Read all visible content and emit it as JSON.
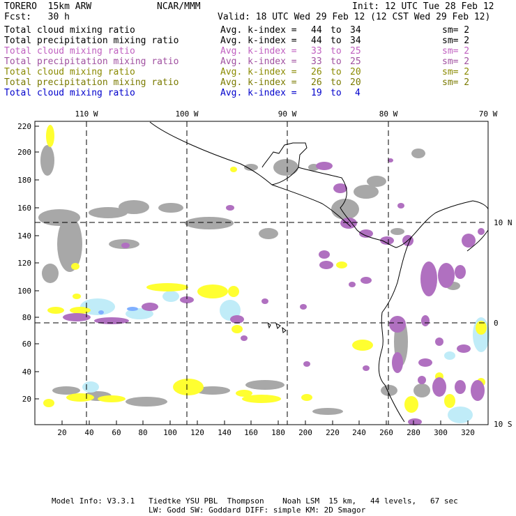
{
  "header": {
    "model": "TORERO  15km ARW",
    "center": "NCAR/MMM",
    "init": "Init: 12 UTC Tue 28 Feb 12",
    "fcst": "Fcst:   30 h",
    "valid": "Valid: 18 UTC Wed 29 Feb 12 (12 CST Wed 29 Feb 12)"
  },
  "legend": {
    "rows": [
      {
        "field": "Total cloud mixing ratio",
        "index_label": "Avg. k-index =",
        "from": "44",
        "to_word": "to",
        "to": "34",
        "sm": "sm= 2",
        "color": "#000000"
      },
      {
        "field": "Total precipitation mixing ratio",
        "index_label": "Avg. k-index =",
        "from": "44",
        "to_word": "to",
        "to": "34",
        "sm": "sm= 2",
        "color": "#000000"
      },
      {
        "field": "Total cloud mixing ratio",
        "index_label": "Avg. k-index =",
        "from": "33",
        "to_word": "to",
        "to": "25",
        "sm": "sm= 2",
        "color": "#c060c0"
      },
      {
        "field": "Total precipitation mixing ratio",
        "index_label": "Avg. k-index =",
        "from": "33",
        "to_word": "to",
        "to": "25",
        "sm": "sm= 2",
        "color": "#a050a0"
      },
      {
        "field": "Total cloud mixing ratio",
        "index_label": "Avg. k-index =",
        "from": "26",
        "to_word": "to",
        "to": "20",
        "sm": "sm= 2",
        "color": "#8a8a00"
      },
      {
        "field": "Total precipitation mixing ratio",
        "index_label": "Avg. k-index =",
        "from": "26",
        "to_word": "to",
        "to": "20",
        "sm": "sm= 2",
        "color": "#7a7a00"
      },
      {
        "field": "Total cloud mixing ratio",
        "index_label": "Avg. k-index =",
        "from": "19",
        "to_word": "to",
        "to": "4",
        "sm": "",
        "color": "#0000cc"
      }
    ]
  },
  "map": {
    "lon_labels": [
      "110 W",
      "100 W",
      "90 W",
      "80 W",
      "70 W"
    ],
    "lat_labels": [
      "10 N",
      "0",
      "10 S"
    ],
    "y_ticks": [
      "220",
      "200",
      "180",
      "160",
      "140",
      "120",
      "100",
      "80",
      "60",
      "40",
      "20"
    ],
    "x_ticks": [
      "20",
      "40",
      "60",
      "80",
      "100",
      "120",
      "140",
      "160",
      "180",
      "200",
      "220",
      "240",
      "260",
      "280",
      "300",
      "320"
    ],
    "colors": {
      "cloud_gray": "#a8a8a8",
      "precip_purple": "#b070c0",
      "yellow": "#ffff30",
      "light_blue": "#c0ecf8",
      "blue": "#80b0ff",
      "coast": "#000000"
    }
  },
  "footer": {
    "line1": "Model Info: V3.3.1   Tiedtke YSU PBL  Thompson    Noah LSM  15 km,   44 levels,   67 sec",
    "line2": "LW: Godd SW: Goddard DIFF: simple KM: 2D Smagor"
  }
}
